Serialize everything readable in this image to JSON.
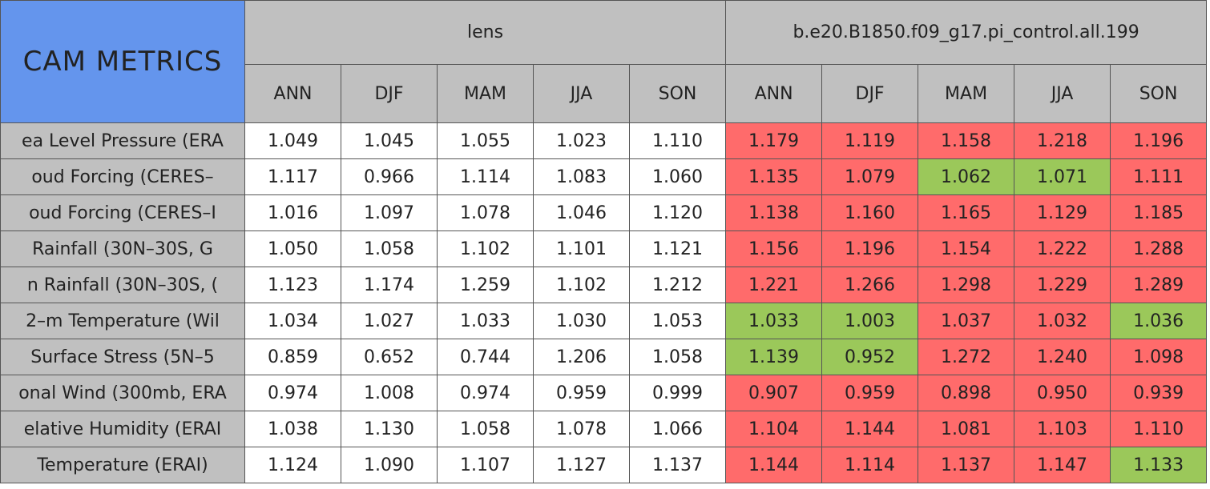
{
  "table": {
    "title": "CAM METRICS",
    "groups": [
      {
        "name": "lens",
        "seasons": [
          "ANN",
          "DJF",
          "MAM",
          "JJA",
          "SON"
        ]
      },
      {
        "name": "b.e20.B1850.f09_g17.pi_control.all.199",
        "seasons": [
          "ANN",
          "DJF",
          "MAM",
          "JJA",
          "SON"
        ]
      }
    ],
    "rows": [
      {
        "label": "ea Level Pressure (ERA",
        "values": [
          "1.049",
          "1.045",
          "1.055",
          "1.023",
          "1.110",
          "1.179",
          "1.119",
          "1.158",
          "1.218",
          "1.196"
        ],
        "colors": [
          "#ffffff",
          "#ffffff",
          "#ffffff",
          "#ffffff",
          "#ffffff",
          "#ff6b6b",
          "#ff6b6b",
          "#ff6b6b",
          "#ff6b6b",
          "#ff6b6b"
        ]
      },
      {
        "label": "oud Forcing (CERES–",
        "values": [
          "1.117",
          "0.966",
          "1.114",
          "1.083",
          "1.060",
          "1.135",
          "1.079",
          "1.062",
          "1.071",
          "1.111"
        ],
        "colors": [
          "#ffffff",
          "#ffffff",
          "#ffffff",
          "#ffffff",
          "#ffffff",
          "#ff6b6b",
          "#ff6b6b",
          "#9bc85a",
          "#9bc85a",
          "#ff6b6b"
        ]
      },
      {
        "label": "oud Forcing (CERES–I",
        "values": [
          "1.016",
          "1.097",
          "1.078",
          "1.046",
          "1.120",
          "1.138",
          "1.160",
          "1.165",
          "1.129",
          "1.185"
        ],
        "colors": [
          "#ffffff",
          "#ffffff",
          "#ffffff",
          "#ffffff",
          "#ffffff",
          "#ff6b6b",
          "#ff6b6b",
          "#ff6b6b",
          "#ff6b6b",
          "#ff6b6b"
        ]
      },
      {
        "label": "Rainfall (30N–30S, G",
        "values": [
          "1.050",
          "1.058",
          "1.102",
          "1.101",
          "1.121",
          "1.156",
          "1.196",
          "1.154",
          "1.222",
          "1.288"
        ],
        "colors": [
          "#ffffff",
          "#ffffff",
          "#ffffff",
          "#ffffff",
          "#ffffff",
          "#ff6b6b",
          "#ff6b6b",
          "#ff6b6b",
          "#ff6b6b",
          "#ff6b6b"
        ]
      },
      {
        "label": "n Rainfall (30N–30S, (",
        "values": [
          "1.123",
          "1.174",
          "1.259",
          "1.102",
          "1.212",
          "1.221",
          "1.266",
          "1.298",
          "1.229",
          "1.289"
        ],
        "colors": [
          "#ffffff",
          "#ffffff",
          "#ffffff",
          "#ffffff",
          "#ffffff",
          "#ff6b6b",
          "#ff6b6b",
          "#ff6b6b",
          "#ff6b6b",
          "#ff6b6b"
        ]
      },
      {
        "label": "2–m Temperature (Wil",
        "values": [
          "1.034",
          "1.027",
          "1.033",
          "1.030",
          "1.053",
          "1.033",
          "1.003",
          "1.037",
          "1.032",
          "1.036"
        ],
        "colors": [
          "#ffffff",
          "#ffffff",
          "#ffffff",
          "#ffffff",
          "#ffffff",
          "#9bc85a",
          "#9bc85a",
          "#ff6b6b",
          "#ff6b6b",
          "#9bc85a"
        ]
      },
      {
        "label": "Surface Stress (5N–5",
        "values": [
          "0.859",
          "0.652",
          "0.744",
          "1.206",
          "1.058",
          "1.139",
          "0.952",
          "1.272",
          "1.240",
          "1.098"
        ],
        "colors": [
          "#ffffff",
          "#ffffff",
          "#ffffff",
          "#ffffff",
          "#ffffff",
          "#9bc85a",
          "#9bc85a",
          "#ff6b6b",
          "#ff6b6b",
          "#ff6b6b"
        ]
      },
      {
        "label": "onal Wind (300mb, ERA",
        "values": [
          "0.974",
          "1.008",
          "0.974",
          "0.959",
          "0.999",
          "0.907",
          "0.959",
          "0.898",
          "0.950",
          "0.939"
        ],
        "colors": [
          "#ffffff",
          "#ffffff",
          "#ffffff",
          "#ffffff",
          "#ffffff",
          "#ff6b6b",
          "#ff6b6b",
          "#ff6b6b",
          "#ff6b6b",
          "#ff6b6b"
        ]
      },
      {
        "label": "elative Humidity (ERAI",
        "values": [
          "1.038",
          "1.130",
          "1.058",
          "1.078",
          "1.066",
          "1.104",
          "1.144",
          "1.081",
          "1.103",
          "1.110"
        ],
        "colors": [
          "#ffffff",
          "#ffffff",
          "#ffffff",
          "#ffffff",
          "#ffffff",
          "#ff6b6b",
          "#ff6b6b",
          "#ff6b6b",
          "#ff6b6b",
          "#ff6b6b"
        ]
      },
      {
        "label": "Temperature (ERAI)",
        "values": [
          "1.124",
          "1.090",
          "1.107",
          "1.127",
          "1.137",
          "1.144",
          "1.114",
          "1.137",
          "1.147",
          "1.133"
        ],
        "colors": [
          "#ffffff",
          "#ffffff",
          "#ffffff",
          "#ffffff",
          "#ffffff",
          "#ff6b6b",
          "#ff6b6b",
          "#ff6b6b",
          "#ff6b6b",
          "#9bc85a"
        ]
      }
    ]
  }
}
